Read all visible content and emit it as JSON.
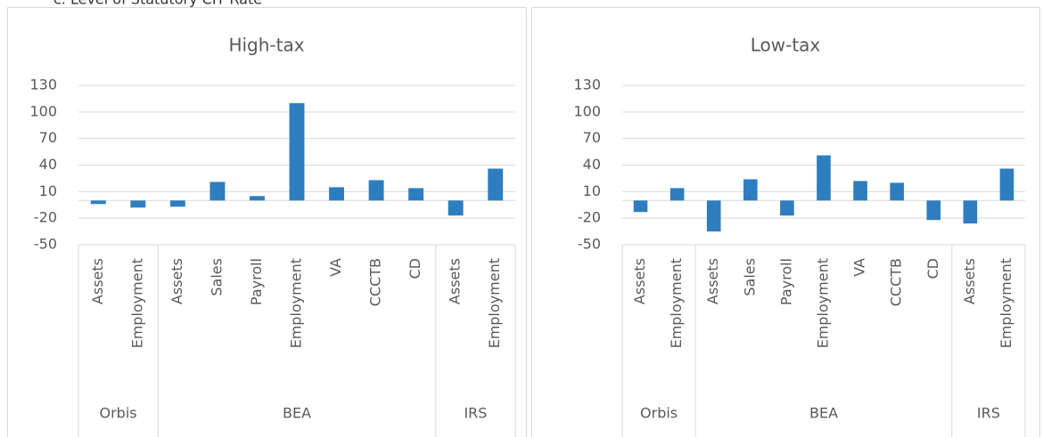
{
  "header": {
    "title": "c.   Level of Statutory CIT Rate"
  },
  "chart_data": [
    {
      "type": "bar",
      "title": "High-tax",
      "color": "#2e7ebf",
      "ylim": [
        -50,
        130
      ],
      "yticks": [
        -50,
        -20,
        10,
        40,
        70,
        100,
        130
      ],
      "grid": true,
      "groups": [
        {
          "name": "Orbis",
          "categories": [
            "Assets",
            "Employment"
          ],
          "values": [
            -4,
            -8
          ]
        },
        {
          "name": "BEA",
          "categories": [
            "Assets",
            "Sales",
            "Payroll",
            "Employment",
            "VA",
            "CCCTB",
            "CD"
          ],
          "values": [
            -7,
            21,
            5,
            110,
            15,
            23,
            14
          ]
        },
        {
          "name": "IRS",
          "categories": [
            "Assets",
            "Employment"
          ],
          "values": [
            -17,
            36
          ]
        }
      ]
    },
    {
      "type": "bar",
      "title": "Low-tax",
      "color": "#2e7ebf",
      "ylim": [
        -50,
        130
      ],
      "yticks": [
        -50,
        -20,
        10,
        40,
        70,
        100,
        130
      ],
      "grid": true,
      "groups": [
        {
          "name": "Orbis",
          "categories": [
            "Assets",
            "Employment"
          ],
          "values": [
            -13,
            14
          ]
        },
        {
          "name": "BEA",
          "categories": [
            "Assets",
            "Sales",
            "Payroll",
            "Employment",
            "VA",
            "CCCTB",
            "CD"
          ],
          "values": [
            -35,
            24,
            -17,
            51,
            22,
            20,
            -22
          ]
        },
        {
          "name": "IRS",
          "categories": [
            "Assets",
            "Employment"
          ],
          "values": [
            -26,
            36
          ]
        }
      ]
    }
  ]
}
